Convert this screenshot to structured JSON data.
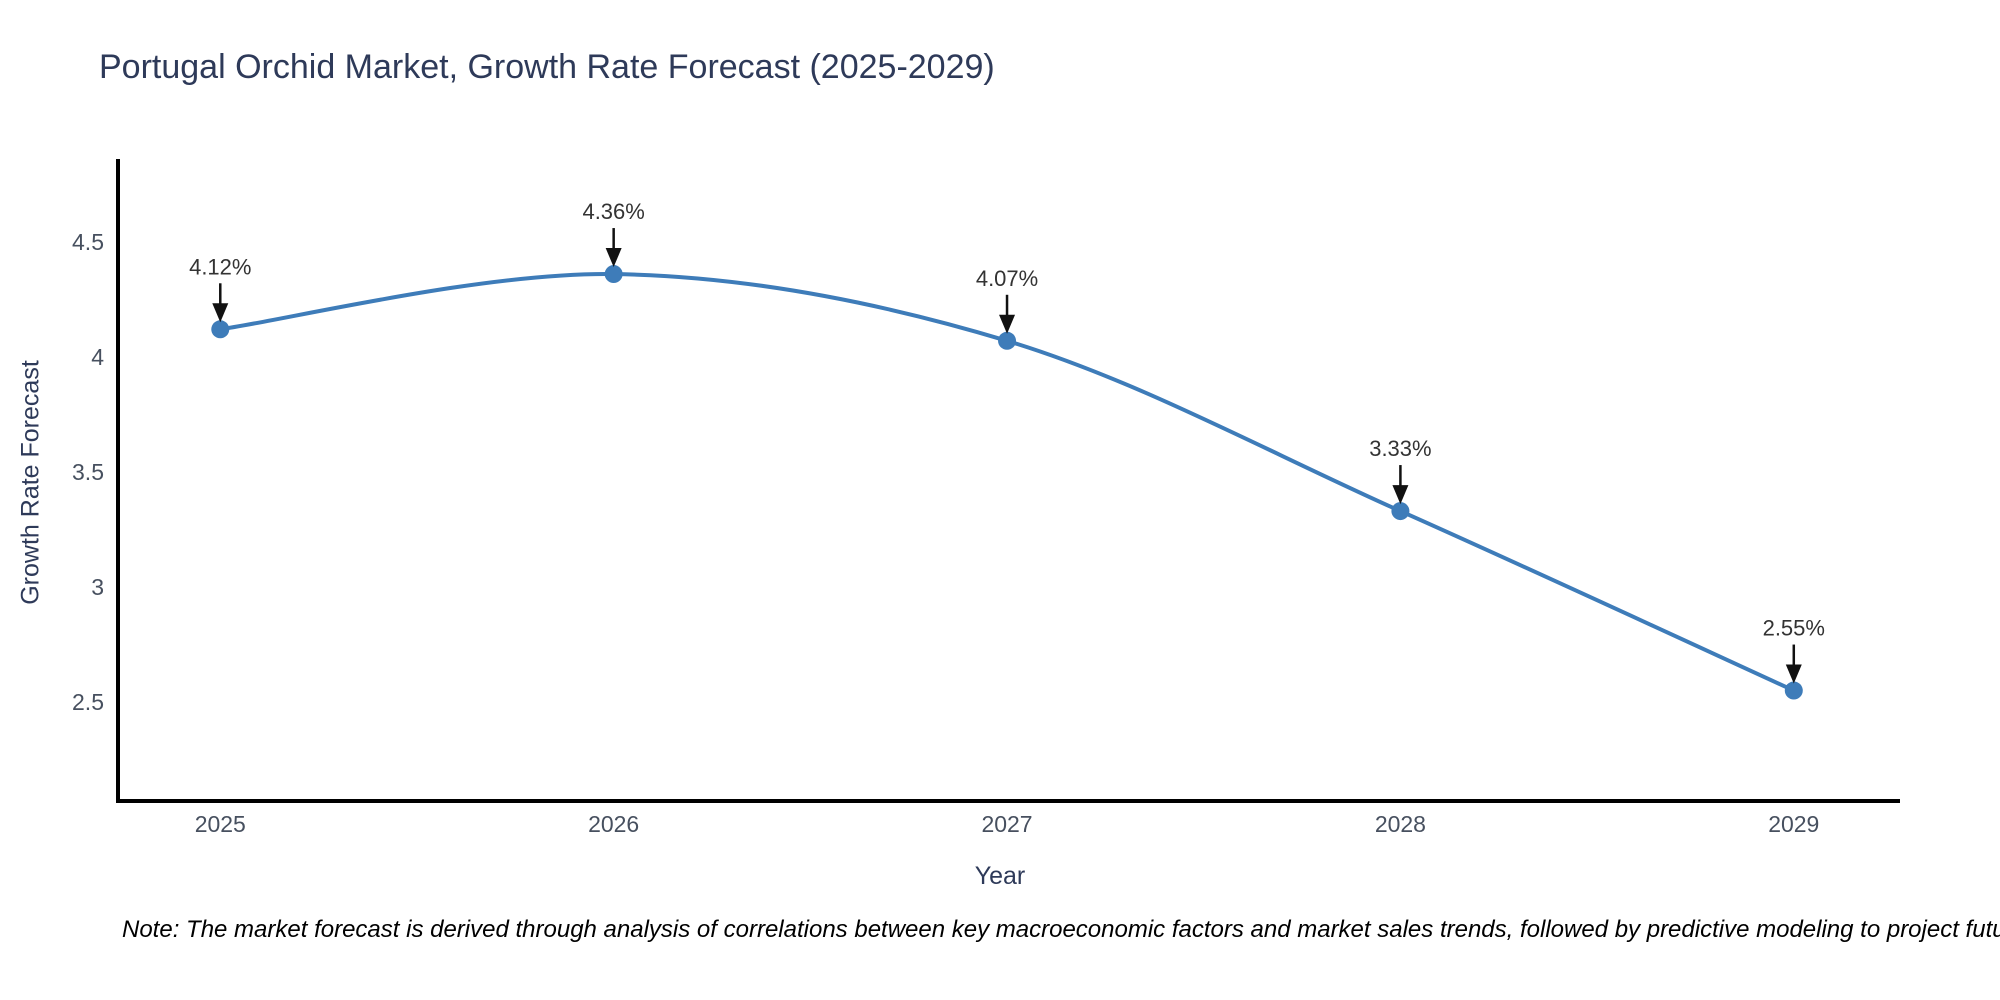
{
  "title": "Portugal Orchid Market, Growth Rate Forecast (2025-2029)",
  "note": "Note: The market forecast is derived through analysis of correlations between key macroeconomic factors and market sales trends, followed by predictive modeling to project future sales",
  "colors": {
    "line": "#3e7cb9",
    "marker": "#3e7cb9",
    "title_text": "#2e3a59",
    "tick_text": "#47505f",
    "annotation_text": "#333333",
    "axis_line": "#000000",
    "arrow": "#111111",
    "background": "#ffffff"
  },
  "chart_data": {
    "type": "line",
    "title": "Portugal Orchid Market, Growth Rate Forecast (2025-2029)",
    "xlabel": "Year",
    "ylabel": "Growth Rate Forecast",
    "x": [
      2025,
      2026,
      2027,
      2028,
      2029
    ],
    "values": [
      4.12,
      4.36,
      4.07,
      3.33,
      2.55
    ],
    "point_labels": [
      "4.12%",
      "4.36%",
      "4.07%",
      "3.33%",
      "2.55%"
    ],
    "xticks": [
      "2025",
      "2026",
      "2027",
      "2028",
      "2029"
    ],
    "yticks": [
      2.5,
      3,
      3.5,
      4,
      4.5
    ],
    "xlim": [
      2024.74,
      2029.27
    ],
    "ylim": [
      2.07,
      4.86
    ],
    "grid": false,
    "legend": false,
    "line_shape": "spline",
    "line_width": 4,
    "marker_size": 18
  }
}
